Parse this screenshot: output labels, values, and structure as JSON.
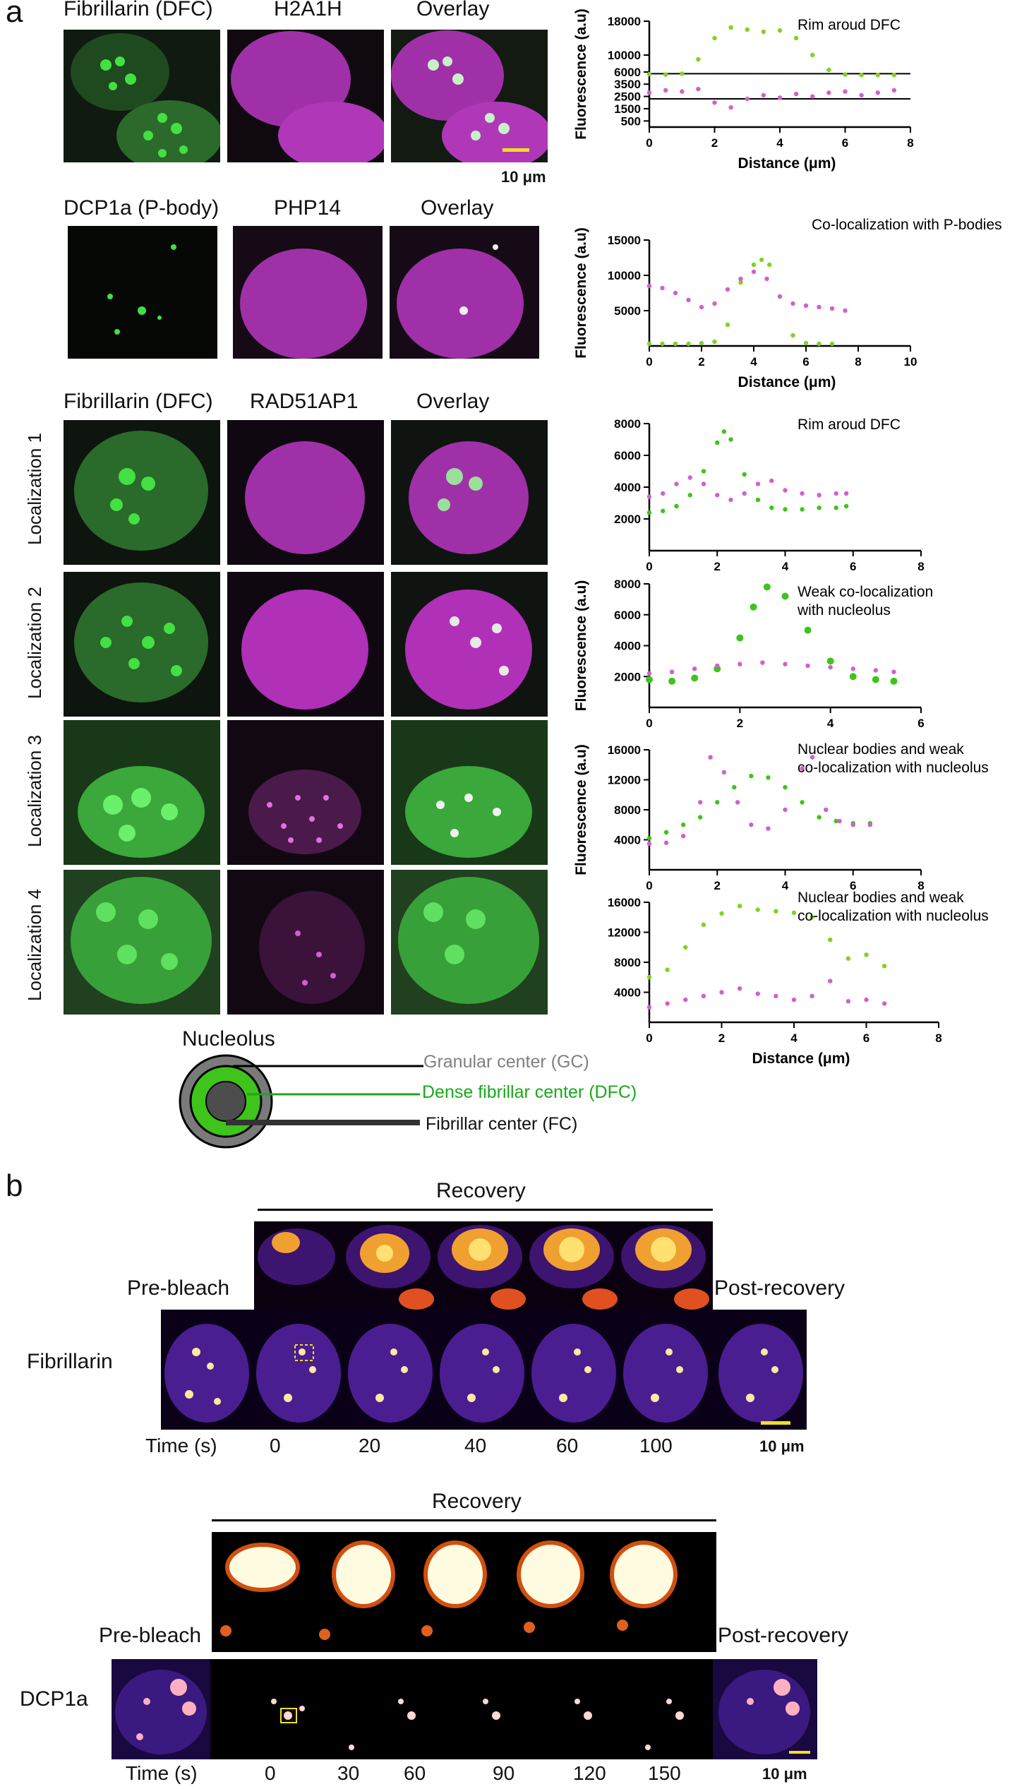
{
  "panel_a": {
    "letter": "a",
    "row1": {
      "headers": [
        "Fibrillarin (DFC)",
        "H2A1H",
        "Overlay"
      ],
      "scale": "10 μm"
    },
    "row2": {
      "headers": [
        "DCP1a (P-body)",
        "PHP14",
        "Overlay"
      ]
    },
    "row3": {
      "headers": [
        "Fibrillarin (DFC)",
        "RAD51AP1",
        "Overlay"
      ],
      "row_labels": [
        "Localization 1",
        "Localization 2",
        "Localization 3",
        "Localization 4"
      ]
    },
    "diagram": {
      "title": "Nucleolus",
      "labels": [
        "Granular center (GC)",
        "Dense fibrillar center (DFC)",
        "Fibrillar center (FC)"
      ],
      "colors": {
        "gc": "#7a7a7a",
        "dfc": "#3ec41a",
        "fc": "#4d4d4d"
      }
    }
  },
  "chart_data": [
    {
      "type": "scatter",
      "title": "Rim aroud DFC",
      "xlabel": "Distance (μm)",
      "ylabel": "Fluorescence (a.u)",
      "xlim": [
        0,
        8
      ],
      "xticks": [
        "0",
        "2",
        "4",
        "6",
        "8"
      ],
      "yticks": [
        "500",
        "1500",
        "2500",
        "3500",
        "6000",
        "10000",
        "18000"
      ],
      "series": [
        {
          "name": "",
          "color": "#7ed321",
          "x": [
            0,
            0.5,
            1,
            1.5,
            2,
            2.5,
            3,
            3.5,
            4,
            4.5,
            5,
            5.5,
            6,
            6.5,
            7,
            7.5
          ],
          "y": [
            5500,
            5400,
            5600,
            9000,
            14000,
            16500,
            16000,
            15500,
            15800,
            14000,
            10000,
            6500,
            5400,
            5300,
            5300,
            5300
          ]
        },
        {
          "name": "",
          "color": "#d060d0",
          "x": [
            0,
            0.5,
            1,
            1.5,
            2,
            2.5,
            3,
            3.5,
            4,
            4.5,
            5,
            5.5,
            6,
            6.5,
            7,
            7.5
          ],
          "y": [
            2800,
            3000,
            2900,
            3100,
            2000,
            1600,
            2300,
            2600,
            2400,
            2700,
            2500,
            2800,
            2900,
            2600,
            2800,
            3000
          ]
        }
      ]
    },
    {
      "type": "scatter",
      "title": "Co-localization with P-bodies",
      "xlabel": "Distance (μm)",
      "ylabel": "Fluorescence (a.u)",
      "xlim": [
        0,
        10
      ],
      "ylim": [
        0,
        15000
      ],
      "xticks": [
        "0",
        "2",
        "4",
        "6",
        "8",
        "10"
      ],
      "yticks": [
        "5000",
        "10000",
        "15000"
      ],
      "series": [
        {
          "name": "",
          "color": "#7ed321",
          "x": [
            0,
            0.5,
            1,
            1.5,
            2,
            2.5,
            3,
            3.5,
            4,
            4.3,
            4.6,
            5,
            5.5,
            6,
            6.5,
            7
          ],
          "y": [
            300,
            300,
            300,
            300,
            400,
            600,
            3000,
            9000,
            11500,
            12200,
            11500,
            7000,
            1500,
            400,
            300,
            300
          ]
        },
        {
          "name": "",
          "color": "#d060d0",
          "x": [
            0,
            0.5,
            1,
            1.5,
            2,
            2.5,
            3,
            3.5,
            4,
            4.5,
            5,
            5.5,
            6,
            6.5,
            7,
            7.5
          ],
          "y": [
            8500,
            8200,
            7500,
            6500,
            5500,
            6000,
            8000,
            9500,
            10500,
            9500,
            7000,
            6000,
            5700,
            5500,
            5300,
            5000
          ]
        }
      ]
    },
    {
      "type": "scatter",
      "title": "Rim aroud DFC",
      "xlabel": "",
      "ylabel": "",
      "xlim": [
        0,
        8
      ],
      "ylim": [
        0,
        8000
      ],
      "xticks": [
        "0",
        "2",
        "4",
        "6",
        "8"
      ],
      "yticks": [
        "2000",
        "4000",
        "6000",
        "8000"
      ],
      "series": [
        {
          "name": "",
          "color": "#3ec41a",
          "x": [
            0,
            0.4,
            0.8,
            1.2,
            1.6,
            2,
            2.2,
            2.4,
            2.8,
            3.2,
            3.6,
            4,
            4.5,
            5,
            5.5,
            5.8
          ],
          "y": [
            2400,
            2500,
            2800,
            3500,
            5000,
            6800,
            7500,
            7000,
            4800,
            3200,
            2700,
            2600,
            2600,
            2700,
            2700,
            2800
          ]
        },
        {
          "name": "",
          "color": "#d060d0",
          "x": [
            0,
            0.4,
            0.8,
            1.2,
            1.6,
            2,
            2.4,
            2.8,
            3.2,
            3.6,
            4,
            4.5,
            5,
            5.5,
            5.8
          ],
          "y": [
            3400,
            3600,
            4200,
            4600,
            4200,
            3500,
            3200,
            3600,
            4200,
            4400,
            3800,
            3600,
            3500,
            3600,
            3600
          ]
        }
      ]
    },
    {
      "type": "scatter",
      "title": "Weak co-localization with nucleolus",
      "xlabel": "",
      "ylabel": "Fluorescence (a.u)",
      "xlim": [
        0,
        6
      ],
      "ylim": [
        0,
        8000
      ],
      "xticks": [
        "0",
        "2",
        "4",
        "6"
      ],
      "yticks": [
        "2000",
        "4000",
        "6000",
        "8000"
      ],
      "series": [
        {
          "name": "",
          "color": "#3ec41a",
          "x": [
            0,
            0.5,
            1,
            1.5,
            2,
            2.3,
            2.6,
            3,
            3.5,
            4,
            4.5,
            5,
            5.4
          ],
          "y": [
            1800,
            1700,
            1900,
            2500,
            4500,
            6500,
            7800,
            7200,
            5000,
            3000,
            2000,
            1800,
            1700
          ]
        },
        {
          "name": "",
          "color": "#d060d0",
          "x": [
            0,
            0.5,
            1,
            1.5,
            2,
            2.5,
            3,
            3.5,
            4,
            4.5,
            5,
            5.4
          ],
          "y": [
            2200,
            2300,
            2500,
            2700,
            2800,
            2900,
            2800,
            2700,
            2600,
            2500,
            2400,
            2300
          ]
        }
      ]
    },
    {
      "type": "scatter",
      "title": "Nuclear bodies and weak co-localization with nucleolus",
      "xlabel": "",
      "ylabel": "Fluorescence (a.u)",
      "xlim": [
        0,
        8
      ],
      "ylim": [
        0,
        16000
      ],
      "xticks": [
        "0",
        "2",
        "4",
        "6",
        "8"
      ],
      "yticks": [
        "4000",
        "8000",
        "12000",
        "16000"
      ],
      "series": [
        {
          "name": "",
          "color": "#3ec41a",
          "x": [
            0,
            0.5,
            1,
            1.5,
            2,
            2.5,
            3,
            3.5,
            4,
            4.5,
            5,
            5.5,
            6,
            6.5
          ],
          "y": [
            4200,
            5000,
            6000,
            7000,
            9000,
            11000,
            12500,
            12300,
            11000,
            9000,
            7000,
            6500,
            6200,
            6200
          ]
        },
        {
          "name": "",
          "color": "#d060d0",
          "x": [
            0,
            0.5,
            1,
            1.5,
            1.8,
            2.2,
            2.6,
            3,
            3.5,
            4,
            4.5,
            4.8,
            5.2,
            5.6,
            6,
            6.5
          ],
          "y": [
            3500,
            3600,
            4500,
            9000,
            15000,
            13000,
            9000,
            6000,
            5500,
            8000,
            13500,
            15000,
            8000,
            6500,
            6000,
            6000
          ]
        }
      ]
    },
    {
      "type": "scatter",
      "title": "Nuclear bodies and weak co-localization with nucleolus",
      "xlabel": "Distance (μm)",
      "ylabel": "",
      "xlim": [
        0,
        8
      ],
      "ylim": [
        0,
        16000
      ],
      "xticks": [
        "0",
        "2",
        "4",
        "6",
        "8"
      ],
      "yticks": [
        "4000",
        "8000",
        "12000",
        "16000"
      ],
      "series": [
        {
          "name": "",
          "color": "#7ed321",
          "x": [
            0,
            0.5,
            1,
            1.5,
            2,
            2.5,
            3,
            3.5,
            4,
            4.5,
            5,
            5.5,
            6,
            6.5
          ],
          "y": [
            6000,
            7000,
            10000,
            13000,
            14500,
            15500,
            15000,
            14800,
            14600,
            14000,
            11000,
            8500,
            9000,
            7500
          ]
        },
        {
          "name": "",
          "color": "#d060d0",
          "x": [
            0,
            0.5,
            1,
            1.5,
            2,
            2.5,
            3,
            3.5,
            4,
            4.5,
            5,
            5.5,
            6,
            6.5
          ],
          "y": [
            2000,
            2500,
            3000,
            3500,
            4000,
            4500,
            3800,
            3500,
            3000,
            3500,
            5500,
            2800,
            3000,
            2500
          ]
        }
      ]
    }
  ],
  "panel_b": {
    "letter": "b",
    "row1": {
      "recovery": "Recovery",
      "pre": "Pre-bleach",
      "post": "Post-recovery",
      "protein": "Fibrillarin",
      "time_label": "Time (s)",
      "times": [
        "0",
        "20",
        "40",
        "60",
        "100"
      ],
      "scale": "10 μm"
    },
    "row2": {
      "recovery": "Recovery",
      "pre": "Pre-bleach",
      "post": "Post-recovery",
      "protein": "DCP1a",
      "time_label": "Time (s)",
      "times": [
        "0",
        "30",
        "60",
        "90",
        "120",
        "150"
      ],
      "scale": "10 μm"
    }
  }
}
